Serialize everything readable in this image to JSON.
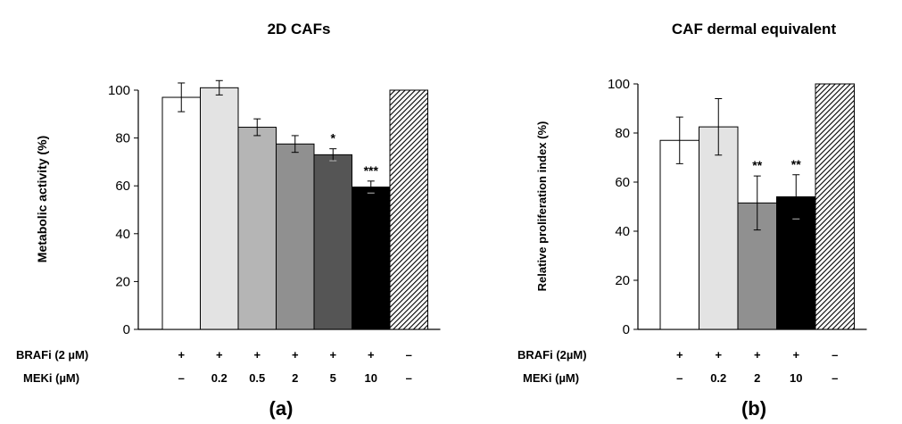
{
  "chart_data": [
    {
      "type": "bar",
      "panel_label": "(a)",
      "title": "2D CAFs",
      "ylabel": "Metabolic activity (%)",
      "ylim": [
        0,
        100
      ],
      "yticks": [
        "0",
        "20",
        "40",
        "60",
        "80",
        "100"
      ],
      "row_labels": [
        "BRAFi (2 µM)",
        "MEKi  (µM)"
      ],
      "brafi": [
        "+",
        "+",
        "+",
        "+",
        "+",
        "+",
        "–"
      ],
      "meki": [
        "–",
        "0.2",
        "0.5",
        "2",
        "5",
        "10",
        "–"
      ],
      "values": [
        97,
        101,
        84.5,
        77.5,
        73,
        59.5,
        100
      ],
      "errors": [
        6,
        3,
        3.5,
        3.5,
        2.5,
        2.5,
        0
      ],
      "significance": [
        "",
        "",
        "",
        "",
        "*",
        "***",
        ""
      ],
      "colors": [
        "#ffffff",
        "#e3e3e3",
        "#b5b5b5",
        "#909090",
        "#555555",
        "#000000",
        "hatch"
      ]
    },
    {
      "type": "bar",
      "panel_label": "(b)",
      "title": "CAF dermal equivalent",
      "ylabel": "Relative proliferation  index (%)",
      "ylim": [
        0,
        100
      ],
      "yticks": [
        "0",
        "20",
        "40",
        "60",
        "80",
        "100"
      ],
      "row_labels": [
        "BRAFi (2µM)",
        "MEKi  (µM)"
      ],
      "brafi": [
        "+",
        "+",
        "+",
        "+",
        "–"
      ],
      "meki": [
        "–",
        "0.2",
        "2",
        "10",
        "–"
      ],
      "values": [
        77,
        82.5,
        51.5,
        54,
        100
      ],
      "errors": [
        9.5,
        11.5,
        11,
        9,
        0
      ],
      "significance": [
        "",
        "",
        "**",
        "**",
        ""
      ],
      "colors": [
        "#ffffff",
        "#e3e3e3",
        "#909090",
        "#000000",
        "hatch"
      ]
    }
  ]
}
